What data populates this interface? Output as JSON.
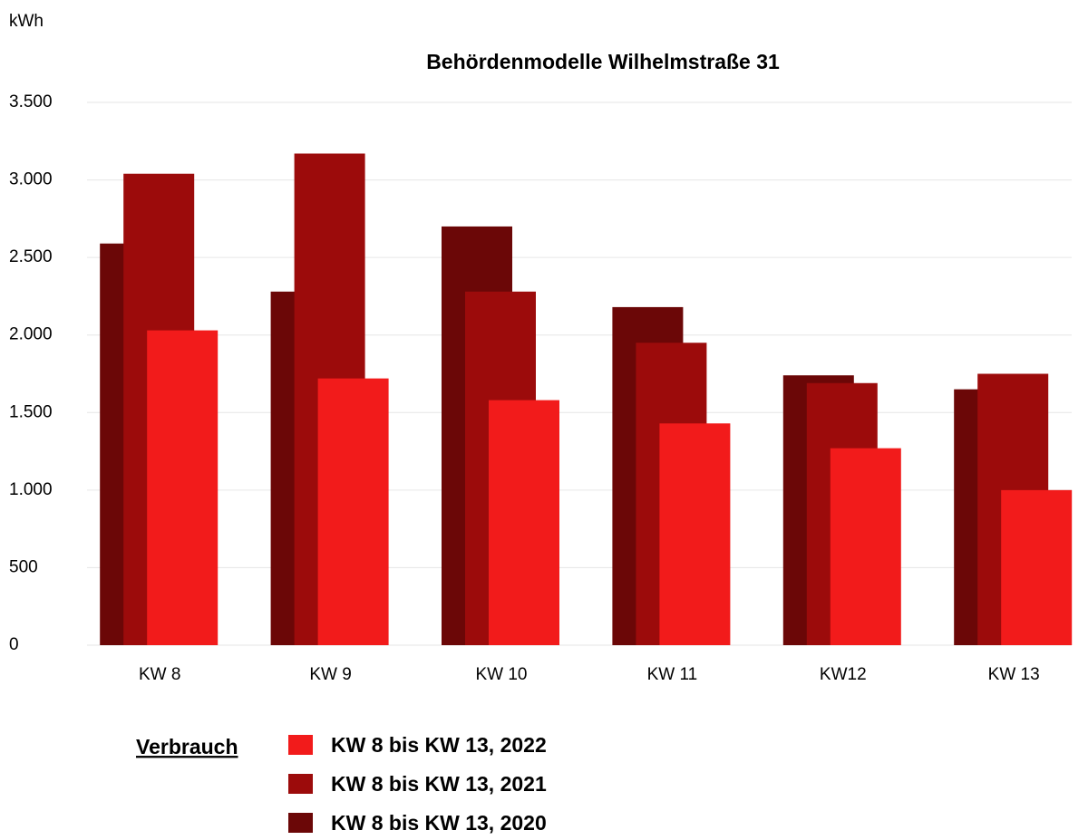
{
  "chart_data": {
    "type": "bar",
    "title": "Behördenmodelle Wilhelmstraße 31",
    "y_label": "kWh",
    "categories": [
      "KW 8",
      "KW 9",
      "KW 10",
      "KW 11",
      "KW12",
      "KW 13"
    ],
    "series": [
      {
        "name": "KW 8 bis KW 13, 2020",
        "color": "#6b0707",
        "values": [
          2590,
          2280,
          2700,
          2180,
          1740,
          1650
        ]
      },
      {
        "name": "KW 8 bis KW 13, 2021",
        "color": "#9c0b0b",
        "values": [
          3040,
          3170,
          2280,
          1950,
          1690,
          1750
        ]
      },
      {
        "name": "KW 8 bis KW 13, 2022",
        "color": "#f21b1b",
        "values": [
          2030,
          1720,
          1580,
          1430,
          1270,
          1000
        ]
      }
    ],
    "legend_title": "Verbrauch",
    "ylim": [
      0,
      3500
    ],
    "yticks": [
      0,
      500,
      {
        "value": 1000,
        "label": "1.000"
      },
      {
        "value": 1500,
        "label": "1.500"
      },
      {
        "value": 2000,
        "label": "2.000"
      },
      {
        "value": 2500,
        "label": "2.500"
      },
      {
        "value": 3000,
        "label": "3.000"
      },
      {
        "value": 3500,
        "label": "3.500"
      }
    ],
    "grid": true
  }
}
